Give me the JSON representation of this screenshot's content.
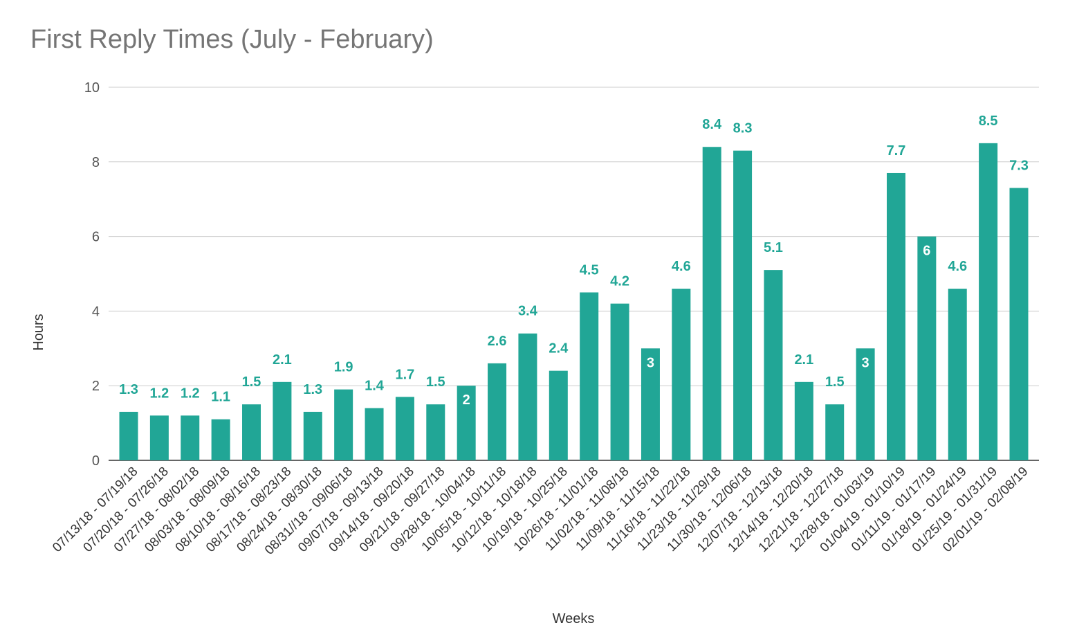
{
  "chart_data": {
    "type": "bar",
    "title": "First Reply Times (July - February)",
    "xlabel": "Weeks",
    "ylabel": "Hours",
    "ylim": [
      0,
      10
    ],
    "yticks": [
      0,
      2,
      4,
      6,
      8,
      10
    ],
    "grid": true,
    "bar_color": "#21a696",
    "label_color": "#21a696",
    "inside_label_color": "#ffffff",
    "categories": [
      "07/13/18 - 07/19/18",
      "07/20/18 - 07/26/18",
      "07/27/18 - 08/02/18",
      "08/03/18 - 08/09/18",
      "08/10/18 - 08/16/18",
      "08/17/18 - 08/23/18",
      "08/24/18 - 08/30/18",
      "08/31//18 - 09/06/18",
      "09/07/18 - 09/13/18",
      "09/14/18 - 09/20/18",
      "09/21/18 - 09/27/18",
      "09/28/18 - 10/04/18",
      "10/05/18 - 10/11/18",
      "10/12/18 - 10/18/18",
      "10/19/18 - 10/25/18",
      "10/26/18 - 11/01/18",
      "11/02/18 - 11/08/18",
      "11/09/18 - 11/15/18",
      "11/16/18 - 11/22/18",
      "11/23/18 - 11/29/18",
      "11/30/18 - 12/06/18",
      "12/07/18 - 12/13/18",
      "12/14/18 - 12/20/18",
      "12/21/18 - 12/27/18",
      "12/28/18 - 01/03/19",
      "01/04/19 - 01/10/19",
      "01/11/19 - 01/17/19",
      "01/18/19 - 01/24/19",
      "01/25/19 - 01/31/19",
      "02/01/19 - 02/08/19"
    ],
    "values": [
      1.3,
      1.2,
      1.2,
      1.1,
      1.5,
      2.1,
      1.3,
      1.9,
      1.4,
      1.7,
      1.5,
      2,
      2.6,
      3.4,
      2.4,
      4.5,
      4.2,
      3,
      4.6,
      8.4,
      8.3,
      5.1,
      2.1,
      1.5,
      3,
      7.7,
      6,
      4.6,
      8.5,
      7.3
    ],
    "data_labels": [
      "1.3",
      "1.2",
      "1.2",
      "1.1",
      "1.5",
      "2.1",
      "1.3",
      "1.9",
      "1.4",
      "1.7",
      "1.5",
      "2",
      "2.6",
      "3.4",
      "2.4",
      "4.5",
      "4.2",
      "3",
      "4.6",
      "8.4",
      "8.3",
      "5.1",
      "2.1",
      "1.5",
      "3",
      "7.7",
      "6",
      "4.6",
      "8.5",
      "7.3"
    ],
    "inside_label_indices": [
      11,
      17,
      24,
      26
    ]
  }
}
